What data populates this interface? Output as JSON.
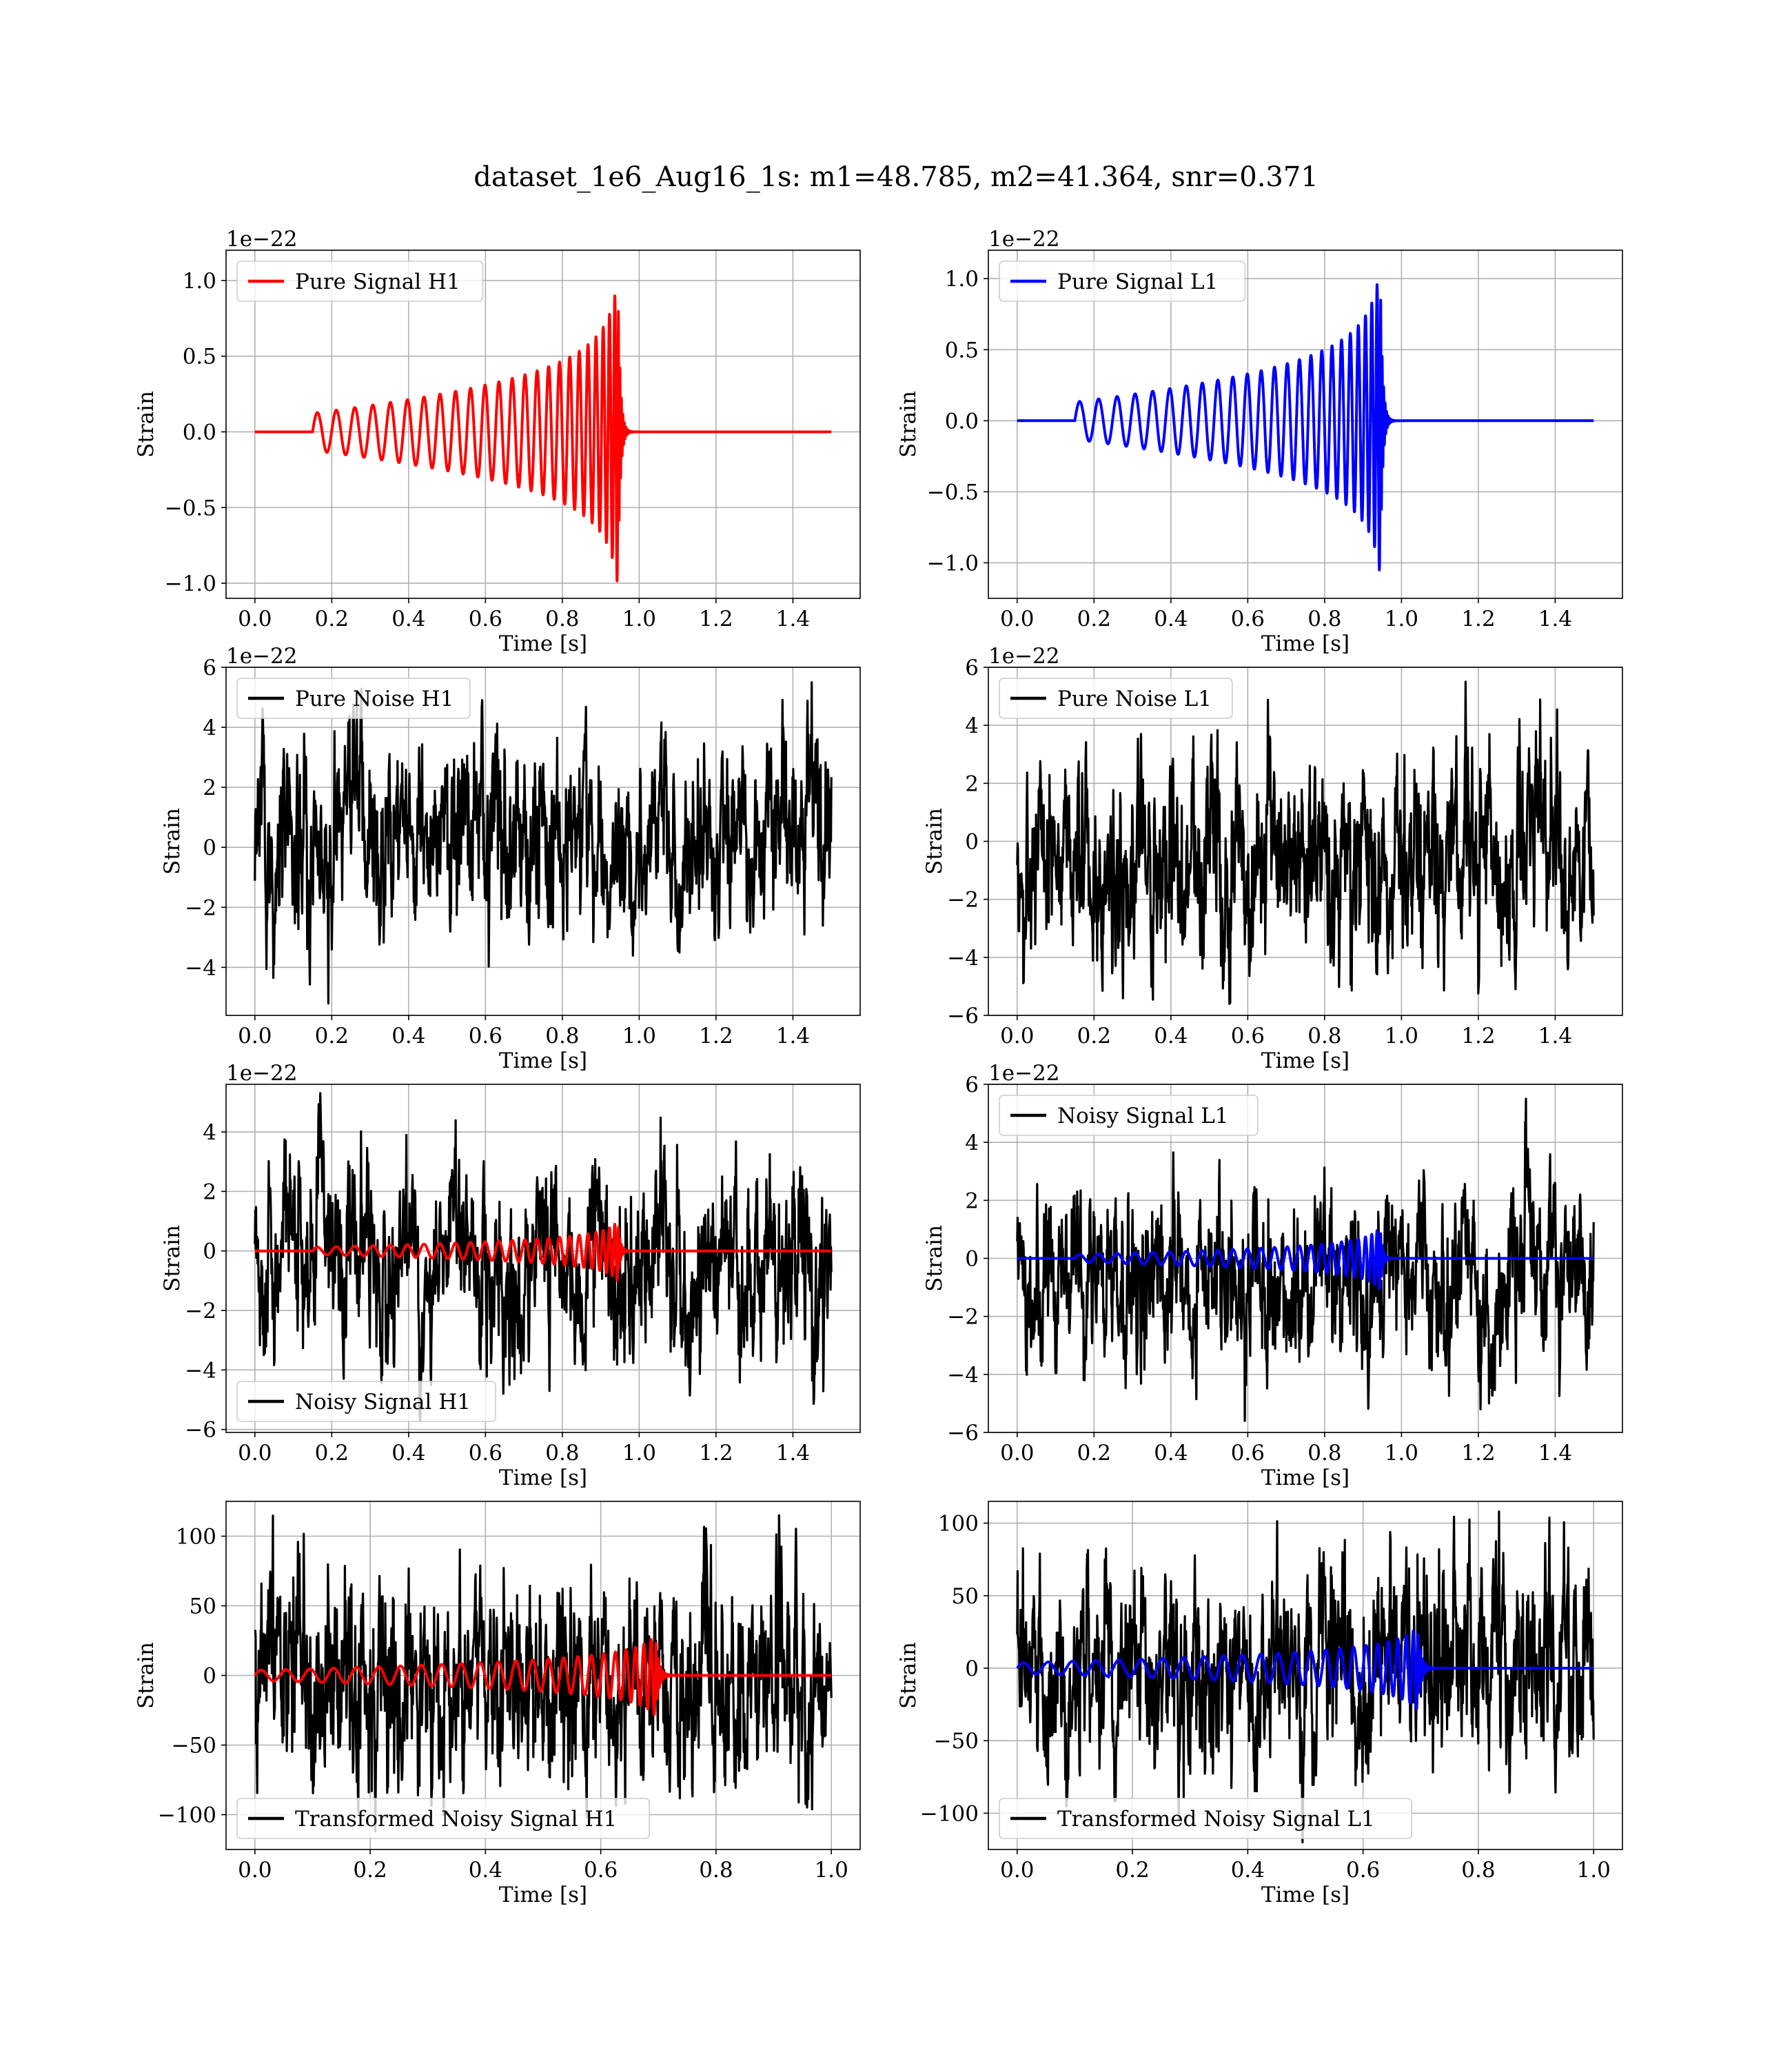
{
  "figure": {
    "title": "dataset_1e6_Aug16_1s: m1=48.785, m2=41.364, snr=0.371"
  },
  "colors": {
    "h1_signal": "#ff0000",
    "l1_signal": "#0000ff",
    "noise": "#000000"
  },
  "chart_data": [
    {
      "type": "line",
      "panel": "pure-signal-h1",
      "xlabel": "Time [s]",
      "ylabel": "Strain",
      "offset_label": "1e−22",
      "xlim": [
        -0.075,
        1.575
      ],
      "ylim": [
        -1.1,
        1.2
      ],
      "xticks": [
        0.0,
        0.2,
        0.4,
        0.6,
        0.8,
        1.0,
        1.2,
        1.4
      ],
      "xtick_labels": [
        "0.0",
        "0.2",
        "0.4",
        "0.6",
        "0.8",
        "1.0",
        "1.2",
        "1.4"
      ],
      "yticks": [
        -1.0,
        -0.5,
        0.0,
        0.5,
        1.0
      ],
      "ytick_labels": [
        "−1.0",
        "−0.5",
        "0.0",
        "0.5",
        "1.0"
      ],
      "grid": true,
      "legend": "upper-left",
      "series": [
        {
          "name": "Pure Signal H1",
          "color": "#ff0000",
          "kind": "chirp",
          "x_range": [
            0.0,
            1.5
          ],
          "chirp_start": 0.15,
          "merger_time": 0.945,
          "peak_amplitude": 1.05,
          "note_envelope": "amplitude grows from ~0.03 to ~1.05 at merger"
        }
      ]
    },
    {
      "type": "line",
      "panel": "pure-signal-l1",
      "xlabel": "Time [s]",
      "ylabel": "Strain",
      "offset_label": "1e−22",
      "xlim": [
        -0.075,
        1.575
      ],
      "ylim": [
        -1.25,
        1.2
      ],
      "xticks": [
        0.0,
        0.2,
        0.4,
        0.6,
        0.8,
        1.0,
        1.2,
        1.4
      ],
      "xtick_labels": [
        "0.0",
        "0.2",
        "0.4",
        "0.6",
        "0.8",
        "1.0",
        "1.2",
        "1.4"
      ],
      "yticks": [
        -1.0,
        -0.5,
        0.0,
        0.5,
        1.0
      ],
      "ytick_labels": [
        "−1.0",
        "−0.5",
        "0.0",
        "0.5",
        "1.0"
      ],
      "grid": true,
      "legend": "upper-left",
      "series": [
        {
          "name": "Pure Signal L1",
          "color": "#0000ff",
          "kind": "chirp",
          "x_range": [
            0.0,
            1.5
          ],
          "chirp_start": 0.15,
          "merger_time": 0.945,
          "peak_amplitude": 1.12
        }
      ]
    },
    {
      "type": "line",
      "panel": "pure-noise-h1",
      "xlabel": "Time [s]",
      "ylabel": "Strain",
      "offset_label": "1e−22",
      "xlim": [
        -0.075,
        1.575
      ],
      "ylim": [
        -5.6,
        6.0
      ],
      "xticks": [
        0.0,
        0.2,
        0.4,
        0.6,
        0.8,
        1.0,
        1.2,
        1.4
      ],
      "xtick_labels": [
        "0.0",
        "0.2",
        "0.4",
        "0.6",
        "0.8",
        "1.0",
        "1.2",
        "1.4"
      ],
      "yticks": [
        -4,
        -2,
        0,
        2,
        4,
        6
      ],
      "ytick_labels": [
        "−4",
        "−2",
        "0",
        "2",
        "4",
        "6"
      ],
      "grid": true,
      "legend": "upper-left",
      "series": [
        {
          "name": "Pure Noise H1",
          "color": "#000000",
          "kind": "noise",
          "x_range": [
            0.0,
            1.5
          ],
          "amplitude_range": [
            -5.2,
            5.5
          ]
        }
      ]
    },
    {
      "type": "line",
      "panel": "pure-noise-l1",
      "xlabel": "Time [s]",
      "ylabel": "Strain",
      "offset_label": "1e−22",
      "xlim": [
        -0.075,
        1.575
      ],
      "ylim": [
        -6.0,
        6.0
      ],
      "xticks": [
        0.0,
        0.2,
        0.4,
        0.6,
        0.8,
        1.0,
        1.2,
        1.4
      ],
      "xtick_labels": [
        "0.0",
        "0.2",
        "0.4",
        "0.6",
        "0.8",
        "1.0",
        "1.2",
        "1.4"
      ],
      "yticks": [
        -6,
        -4,
        -2,
        0,
        2,
        4,
        6
      ],
      "ytick_labels": [
        "−6",
        "−4",
        "−2",
        "0",
        "2",
        "4",
        "6"
      ],
      "grid": true,
      "legend": "upper-left",
      "series": [
        {
          "name": "Pure Noise L1",
          "color": "#000000",
          "kind": "noise",
          "x_range": [
            0.0,
            1.5
          ],
          "amplitude_range": [
            -5.6,
            5.5
          ]
        }
      ]
    },
    {
      "type": "line",
      "panel": "noisy-signal-h1",
      "xlabel": "Time [s]",
      "ylabel": "Strain",
      "offset_label": "1e−22",
      "xlim": [
        -0.075,
        1.575
      ],
      "ylim": [
        -6.1,
        5.6
      ],
      "xticks": [
        0.0,
        0.2,
        0.4,
        0.6,
        0.8,
        1.0,
        1.2,
        1.4
      ],
      "xtick_labels": [
        "0.0",
        "0.2",
        "0.4",
        "0.6",
        "0.8",
        "1.0",
        "1.2",
        "1.4"
      ],
      "yticks": [
        -6,
        -4,
        -2,
        0,
        2,
        4
      ],
      "ytick_labels": [
        "−6",
        "−4",
        "−2",
        "0",
        "2",
        "4"
      ],
      "grid": true,
      "legend": "lower-left",
      "series": [
        {
          "name": "Noisy Signal H1",
          "color": "#000000",
          "kind": "noise",
          "x_range": [
            0.0,
            1.5
          ],
          "amplitude_range": [
            -5.7,
            5.3
          ]
        },
        {
          "color": "#ff0000",
          "kind": "chirp",
          "x_range": [
            0.0,
            1.5
          ],
          "chirp_start": 0.15,
          "merger_time": 0.945,
          "peak_amplitude": 1.05
        }
      ]
    },
    {
      "type": "line",
      "panel": "noisy-signal-l1",
      "xlabel": "Time [s]",
      "ylabel": "Strain",
      "offset_label": "1e−22",
      "xlim": [
        -0.075,
        1.575
      ],
      "ylim": [
        -6.0,
        6.0
      ],
      "xticks": [
        0.0,
        0.2,
        0.4,
        0.6,
        0.8,
        1.0,
        1.2,
        1.4
      ],
      "xtick_labels": [
        "0.0",
        "0.2",
        "0.4",
        "0.6",
        "0.8",
        "1.0",
        "1.2",
        "1.4"
      ],
      "yticks": [
        -6,
        -4,
        -2,
        0,
        2,
        4,
        6
      ],
      "ytick_labels": [
        "−6",
        "−4",
        "−2",
        "0",
        "2",
        "4",
        "6"
      ],
      "grid": true,
      "legend": "upper-left",
      "series": [
        {
          "name": "Noisy Signal L1",
          "color": "#000000",
          "kind": "noise",
          "x_range": [
            0.0,
            1.5
          ],
          "amplitude_range": [
            -5.6,
            5.5
          ]
        },
        {
          "color": "#0000ff",
          "kind": "chirp",
          "x_range": [
            0.0,
            1.5
          ],
          "chirp_start": 0.15,
          "merger_time": 0.945,
          "peak_amplitude": 1.12
        }
      ]
    },
    {
      "type": "line",
      "panel": "transformed-noisy-signal-h1",
      "xlabel": "Time [s]",
      "ylabel": "Strain",
      "offset_label": "",
      "xlim": [
        -0.05,
        1.05
      ],
      "ylim": [
        -125,
        125
      ],
      "xticks": [
        0.0,
        0.2,
        0.4,
        0.6,
        0.8,
        1.0
      ],
      "xtick_labels": [
        "0.0",
        "0.2",
        "0.4",
        "0.6",
        "0.8",
        "1.0"
      ],
      "yticks": [
        -100,
        -50,
        0,
        50,
        100
      ],
      "ytick_labels": [
        "−100",
        "−50",
        "0",
        "50",
        "100"
      ],
      "grid": true,
      "legend": "lower-left",
      "series": [
        {
          "name": "Transformed Noisy Signal H1",
          "color": "#000000",
          "kind": "noise",
          "x_range": [
            0.0,
            1.0
          ],
          "amplitude_range": [
            -112,
            115
          ]
        },
        {
          "color": "#ff0000",
          "kind": "chirp",
          "x_range": [
            0.0,
            1.0
          ],
          "chirp_start": 0.0,
          "merger_time": 0.695,
          "peak_amplitude": 30
        }
      ]
    },
    {
      "type": "line",
      "panel": "transformed-noisy-signal-l1",
      "xlabel": "Time [s]",
      "ylabel": "Strain",
      "offset_label": "",
      "xlim": [
        -0.05,
        1.05
      ],
      "ylim": [
        -125,
        115
      ],
      "xticks": [
        0.0,
        0.2,
        0.4,
        0.6,
        0.8,
        1.0
      ],
      "xtick_labels": [
        "0.0",
        "0.2",
        "0.4",
        "0.6",
        "0.8",
        "1.0"
      ],
      "yticks": [
        -100,
        -50,
        0,
        50,
        100
      ],
      "ytick_labels": [
        "−100",
        "−50",
        "0",
        "50",
        "100"
      ],
      "grid": true,
      "legend": "lower-left",
      "series": [
        {
          "name": "Transformed Noisy Signal L1",
          "color": "#000000",
          "kind": "noise",
          "x_range": [
            0.0,
            1.0
          ],
          "amplitude_range": [
            -120,
            108
          ]
        },
        {
          "color": "#0000ff",
          "kind": "chirp",
          "x_range": [
            0.0,
            1.0
          ],
          "chirp_start": 0.0,
          "merger_time": 0.695,
          "peak_amplitude": 30
        }
      ]
    }
  ]
}
